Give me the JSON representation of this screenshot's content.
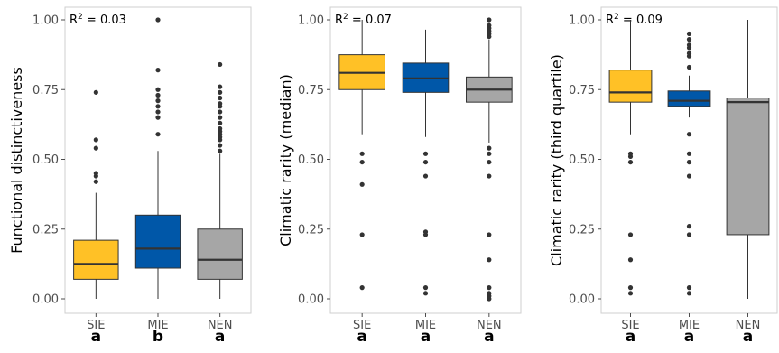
{
  "chart_data": [
    {
      "type": "boxplot",
      "ylabel": "Functional distinctiveness",
      "annotation": {
        "prefix": "R",
        "sup": "2",
        "suffix": " = 0.03"
      },
      "ylim": [
        0,
        1
      ],
      "yticks": [
        "0.00",
        "0.25",
        "0.50",
        "0.75",
        "1.00"
      ],
      "categories": [
        "SIE",
        "MIE",
        "NEN"
      ],
      "group_letters": [
        "a",
        "b",
        "a"
      ],
      "boxes": [
        {
          "category": "SIE",
          "color": "#FFC126",
          "min": 0.0,
          "q1": 0.07,
          "median": 0.125,
          "q3": 0.21,
          "max": 0.38,
          "outliers": [
            0.42,
            0.44,
            0.45,
            0.54,
            0.57,
            0.74
          ]
        },
        {
          "category": "MIE",
          "color": "#0057A8",
          "min": 0.0,
          "q1": 0.11,
          "median": 0.18,
          "q3": 0.3,
          "max": 0.53,
          "outliers": [
            0.59,
            0.65,
            0.67,
            0.69,
            0.71,
            0.73,
            0.75,
            0.82,
            1.0
          ]
        },
        {
          "category": "NEN",
          "color": "#A6A6A6",
          "min": 0.0,
          "q1": 0.07,
          "median": 0.14,
          "q3": 0.25,
          "max": 0.52,
          "outliers": [
            0.53,
            0.55,
            0.57,
            0.58,
            0.59,
            0.6,
            0.61,
            0.63,
            0.65,
            0.67,
            0.69,
            0.7,
            0.72,
            0.74,
            0.76,
            0.84
          ]
        }
      ]
    },
    {
      "type": "boxplot",
      "ylabel": "Climatic rarity (median)",
      "annotation": {
        "prefix": "R",
        "sup": "2",
        "suffix": " = 0.07"
      },
      "ylim": [
        0,
        1
      ],
      "yticks": [
        "0.00",
        "0.25",
        "0.50",
        "0.75",
        "1.00"
      ],
      "categories": [
        "SIE",
        "MIE",
        "NEN"
      ],
      "group_letters": [
        "a",
        "a",
        "a"
      ],
      "boxes": [
        {
          "category": "SIE",
          "color": "#FFC126",
          "min": 0.59,
          "q1": 0.75,
          "median": 0.81,
          "q3": 0.875,
          "max": 1.0,
          "outliers": [
            0.04,
            0.23,
            0.41,
            0.49,
            0.52
          ]
        },
        {
          "category": "MIE",
          "color": "#0057A8",
          "min": 0.58,
          "q1": 0.74,
          "median": 0.79,
          "q3": 0.845,
          "max": 0.965,
          "outliers": [
            0.02,
            0.04,
            0.23,
            0.24,
            0.44,
            0.49,
            0.52
          ]
        },
        {
          "category": "NEN",
          "color": "#A6A6A6",
          "min": 0.56,
          "q1": 0.705,
          "median": 0.75,
          "q3": 0.795,
          "max": 0.93,
          "outliers": [
            0.0,
            0.01,
            0.02,
            0.04,
            0.14,
            0.23,
            0.44,
            0.49,
            0.52,
            0.54,
            0.94,
            0.95,
            0.96,
            0.97,
            0.98,
            1.0
          ]
        }
      ]
    },
    {
      "type": "boxplot",
      "ylabel": "Climatic rarity (third quartile)",
      "annotation": {
        "prefix": "R",
        "sup": "2",
        "suffix": " = 0.09"
      },
      "ylim": [
        0,
        1
      ],
      "yticks": [
        "0.00",
        "0.25",
        "0.50",
        "0.75",
        "1.00"
      ],
      "categories": [
        "SIE",
        "MIE",
        "NEN"
      ],
      "group_letters": [
        "a",
        "a",
        "a"
      ],
      "boxes": [
        {
          "category": "SIE",
          "color": "#FFC126",
          "min": 0.59,
          "q1": 0.705,
          "median": 0.74,
          "q3": 0.82,
          "max": 1.0,
          "outliers": [
            0.02,
            0.04,
            0.14,
            0.23,
            0.49,
            0.51,
            0.52
          ]
        },
        {
          "category": "MIE",
          "color": "#0057A8",
          "min": 0.65,
          "q1": 0.69,
          "median": 0.71,
          "q3": 0.745,
          "max": 0.8,
          "outliers": [
            0.02,
            0.04,
            0.23,
            0.26,
            0.44,
            0.49,
            0.52,
            0.59,
            0.83,
            0.87,
            0.88,
            0.9,
            0.91,
            0.93,
            0.95
          ]
        },
        {
          "category": "NEN",
          "color": "#A6A6A6",
          "min": 0.0,
          "q1": 0.23,
          "median": 0.705,
          "q3": 0.72,
          "max": 1.0,
          "outliers": []
        }
      ]
    }
  ]
}
